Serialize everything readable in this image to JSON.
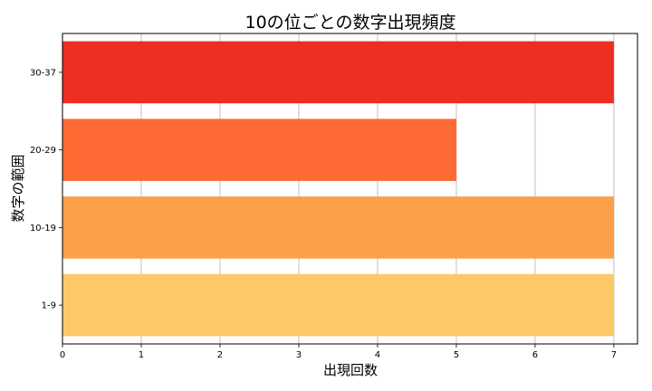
{
  "chart_data": {
    "type": "bar",
    "orientation": "horizontal",
    "title": "10の位ごとの数字出現頻度",
    "xlabel": "出現回数",
    "ylabel": "数字の範囲",
    "categories": [
      "1-9",
      "10-19",
      "20-29",
      "30-37"
    ],
    "values": [
      7,
      7,
      5,
      7
    ],
    "colors": [
      "#fdc966",
      "#fca04a",
      "#fd6a33",
      "#ed2f22"
    ],
    "xlim": [
      0,
      7.3
    ],
    "xticks": [
      0,
      1,
      2,
      3,
      4,
      5,
      6,
      7
    ],
    "grid": "x",
    "legend": "none"
  }
}
